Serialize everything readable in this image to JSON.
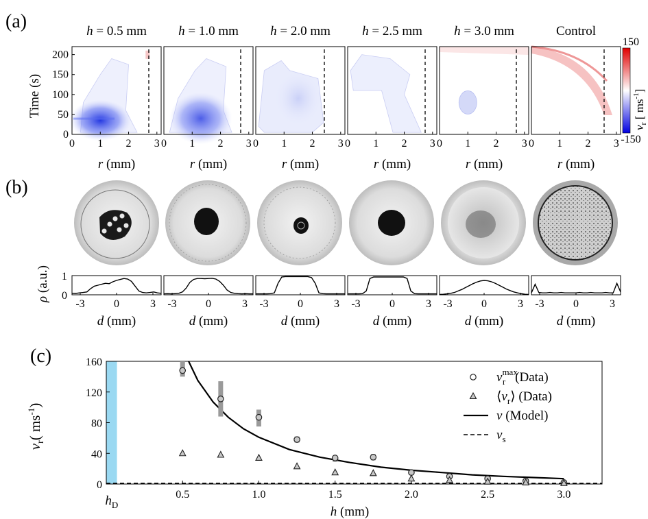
{
  "panel_labels": {
    "a": "(a)",
    "b": "(b)",
    "c": "(c)"
  },
  "panel_a": {
    "h_prefix": "h",
    "columns": [
      {
        "title_value": " = 0.5 mm",
        "hotspot": [
          1.0,
          35
        ]
      },
      {
        "title_value": " = 1.0 mm",
        "hotspot": [
          1.3,
          40
        ]
      },
      {
        "title_value": " = 2.0 mm",
        "hotspot": [
          1.5,
          90
        ]
      },
      {
        "title_value": " = 2.5 mm",
        "hotspot": [
          1.2,
          140
        ]
      },
      {
        "title_value": " = 3.0 mm",
        "hotspot": [
          1.0,
          80
        ]
      },
      {
        "title_value": "Control",
        "hotspot": [
          2.0,
          170
        ]
      }
    ],
    "ylabel": "Time (s)",
    "xlabel_var": "r",
    "xlabel_unit": " (mm)",
    "yticks": [
      "0",
      "50",
      "100",
      "150",
      "200"
    ],
    "xticks": [
      "0",
      "1",
      "2",
      "3"
    ],
    "colorbar": {
      "max_label": "150",
      "min_label": "-150",
      "label_var": "v",
      "label_sub": "r",
      "label_unit": " [  ms",
      "label_exp": "-1",
      "label_close": "]",
      "colors": [
        "#e00000",
        "#ffffff",
        "#0000e0"
      ]
    }
  },
  "panel_b": {
    "ylabel_var": "ρ",
    "ylabel_unit": " (a.u.)",
    "yticks": [
      "0",
      "1"
    ],
    "xticks": [
      "-3",
      "0",
      "3"
    ],
    "xlabel_var": "d",
    "xlabel_unit": " (mm)",
    "profiles": [
      [
        0.08,
        0.07,
        0.1,
        0.12,
        0.15,
        0.32,
        0.45,
        0.5,
        0.55,
        0.6,
        0.58,
        0.68,
        0.75,
        0.8,
        0.85,
        0.82,
        0.7,
        0.45,
        0.2,
        0.12,
        0.1,
        0.12,
        0.15,
        0.1,
        0.08
      ],
      [
        0.05,
        0.06,
        0.05,
        0.06,
        0.08,
        0.15,
        0.35,
        0.65,
        0.8,
        0.85,
        0.85,
        0.84,
        0.85,
        0.86,
        0.82,
        0.7,
        0.5,
        0.25,
        0.12,
        0.08,
        0.06,
        0.05,
        0.06,
        0.05,
        0.05
      ],
      [
        0.05,
        0.05,
        0.05,
        0.05,
        0.06,
        0.1,
        0.6,
        0.93,
        0.95,
        0.95,
        0.95,
        0.95,
        0.95,
        0.95,
        0.95,
        0.9,
        0.6,
        0.1,
        0.06,
        0.05,
        0.05,
        0.05,
        0.05,
        0.05,
        0.05
      ],
      [
        0.05,
        0.05,
        0.05,
        0.05,
        0.06,
        0.2,
        0.85,
        0.93,
        0.93,
        0.93,
        0.93,
        0.93,
        0.93,
        0.93,
        0.93,
        0.93,
        0.85,
        0.2,
        0.06,
        0.05,
        0.05,
        0.05,
        0.05,
        0.05,
        0.05
      ],
      [
        0.02,
        0.03,
        0.05,
        0.08,
        0.12,
        0.2,
        0.28,
        0.38,
        0.48,
        0.58,
        0.66,
        0.72,
        0.75,
        0.73,
        0.68,
        0.6,
        0.5,
        0.4,
        0.3,
        0.22,
        0.15,
        0.1,
        0.06,
        0.03,
        0.02
      ],
      [
        0.1,
        0.55,
        0.12,
        0.1,
        0.1,
        0.12,
        0.1,
        0.1,
        0.12,
        0.1,
        0.1,
        0.1,
        0.1,
        0.12,
        0.1,
        0.1,
        0.12,
        0.1,
        0.1,
        0.1,
        0.12,
        0.1,
        0.1,
        0.6,
        0.15
      ]
    ]
  },
  "chart_data": {
    "type": "scatter",
    "xlabel_var": "h",
    "xlabel_unit": " (mm)",
    "ylabel_var": "v",
    "ylabel_sub": "r",
    "ylabel_unit": "(  ms",
    "ylabel_exp": "-1",
    "ylabel_close": ")",
    "xlim": [
      0.0,
      3.25
    ],
    "ylim": [
      0,
      160
    ],
    "xticks": [
      0.5,
      1.0,
      1.5,
      2.0,
      2.5,
      3.0
    ],
    "xtick_labels": [
      "0.5",
      "1.0",
      "1.5",
      "2.0",
      "2.5",
      "3.0"
    ],
    "yticks": [
      0,
      40,
      80,
      120,
      160
    ],
    "ytick_labels": [
      "0",
      "40",
      "80",
      "120",
      "160"
    ],
    "hD_label_var": "h",
    "hD_label_sub": "D",
    "hD_band": [
      0.0,
      0.07
    ],
    "hD_color": "#9ad9f2",
    "series": [
      {
        "name": "v_r^max (Data)",
        "marker": "circle",
        "x": [
          0.5,
          0.75,
          1.0,
          1.25,
          1.5,
          1.75,
          2.0,
          2.25,
          2.5,
          2.75,
          3.0
        ],
        "y": [
          148,
          111,
          87,
          58,
          34,
          35,
          15,
          10,
          7,
          4,
          2
        ],
        "err_low": [
          140,
          88,
          75,
          54,
          29,
          31,
          13,
          8,
          5,
          2,
          1
        ],
        "err_high": [
          160,
          134,
          97,
          62,
          37,
          39,
          17,
          11,
          8,
          5,
          3
        ]
      },
      {
        "name": "⟨v_r⟩ (Data)",
        "marker": "triangle",
        "x": [
          0.5,
          0.75,
          1.0,
          1.25,
          1.5,
          1.75,
          2.0,
          2.25,
          2.5,
          2.75,
          3.0
        ],
        "y": [
          40,
          38,
          34,
          23,
          15,
          14,
          7,
          5,
          3,
          2,
          1
        ]
      },
      {
        "name": "v (Model)",
        "style": "solid",
        "x": [
          0.54,
          0.6,
          0.7,
          0.8,
          0.9,
          1.0,
          1.2,
          1.4,
          1.6,
          1.8,
          2.0,
          2.2,
          2.4,
          2.6,
          2.8,
          3.0
        ],
        "y": [
          160,
          135,
          107,
          87,
          72,
          61,
          45,
          35,
          28,
          22,
          18,
          15,
          12,
          10,
          8.5,
          7
        ]
      },
      {
        "name": "v_s",
        "style": "dashed",
        "x": [
          0.0,
          3.25
        ],
        "y": [
          1,
          1
        ]
      }
    ],
    "legend": {
      "position": "top-right",
      "entries": [
        {
          "var": "v",
          "sub": "r",
          "sup": "max",
          "text": "(Data)"
        },
        {
          "open": "⟨",
          "var": "v",
          "sub": "r",
          "close": "⟩",
          "text": " (Data)"
        },
        {
          "var": "v",
          "text": " (Model)"
        },
        {
          "var": "v",
          "sub": "s",
          "text": ""
        }
      ]
    }
  }
}
